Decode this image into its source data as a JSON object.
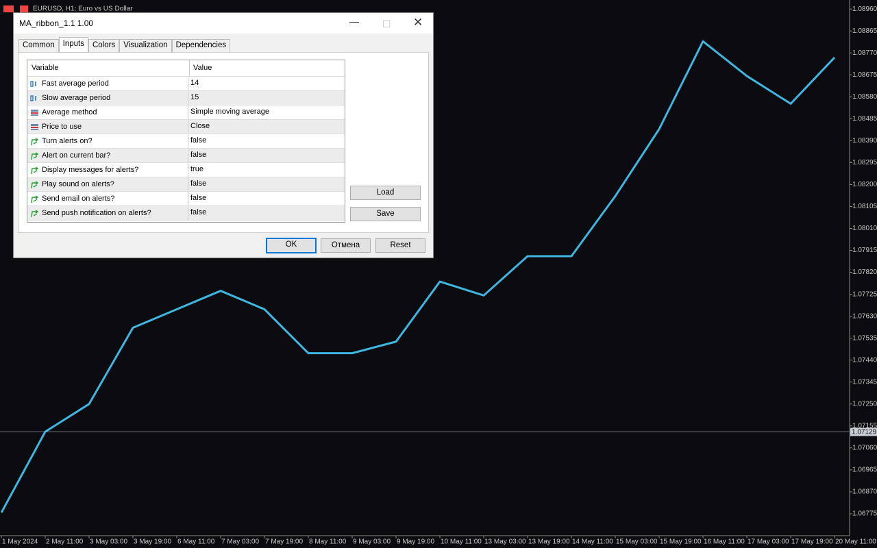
{
  "window": {
    "title": "EURUSD, H1:  Euro vs US Dollar"
  },
  "chart_data": {
    "type": "line",
    "color": "#3fb6e0",
    "categories": [
      "1 May 2024",
      "2 May 11:00",
      "3 May 03:00",
      "3 May 19:00",
      "6 May 11:00",
      "7 May 03:00",
      "7 May 19:00",
      "8 May 11:00",
      "9 May 03:00",
      "9 May 19:00",
      "10 May 11:00",
      "13 May 03:00",
      "13 May 19:00",
      "14 May 11:00",
      "15 May 03:00",
      "15 May 19:00",
      "16 May 11:00",
      "17 May 03:00",
      "17 May 19:00",
      "20 May 11:00"
    ],
    "values": [
      1.0678,
      1.0713,
      1.0725,
      1.0758,
      1.0766,
      1.0774,
      1.0766,
      1.0747,
      1.0747,
      1.0752,
      1.0778,
      1.0772,
      1.0789,
      1.0789,
      1.0815,
      1.0844,
      1.0882,
      1.0867,
      1.0855,
      1.0875
    ],
    "ylim": [
      1.06686,
      1.08999
    ],
    "yticks": [
      {
        "value": 1.0896,
        "label": "1.08960"
      },
      {
        "value": 1.08865,
        "label": "1.08865"
      },
      {
        "value": 1.0877,
        "label": "1.08770"
      },
      {
        "value": 1.08675,
        "label": "1.08675"
      },
      {
        "value": 1.0858,
        "label": "1.08580"
      },
      {
        "value": 1.08485,
        "label": "1.08485"
      },
      {
        "value": 1.0839,
        "label": "1.08390"
      },
      {
        "value": 1.08295,
        "label": "1.08295"
      },
      {
        "value": 1.082,
        "label": "1.08200"
      },
      {
        "value": 1.08105,
        "label": "1.08105"
      },
      {
        "value": 1.0801,
        "label": "1.08010"
      },
      {
        "value": 1.07915,
        "label": "1.07915"
      },
      {
        "value": 1.0782,
        "label": "1.07820"
      },
      {
        "value": 1.07725,
        "label": "1.07725"
      },
      {
        "value": 1.0763,
        "label": "1.07630"
      },
      {
        "value": 1.07535,
        "label": "1.07535"
      },
      {
        "value": 1.0744,
        "label": "1.07440"
      },
      {
        "value": 1.07345,
        "label": "1.07345"
      },
      {
        "value": 1.0725,
        "label": "1.07250"
      },
      {
        "value": 1.07155,
        "label": "1.07155"
      },
      {
        "value": 1.0706,
        "label": "1.07060"
      },
      {
        "value": 1.06965,
        "label": "1.06965"
      },
      {
        "value": 1.0687,
        "label": "1.06870"
      },
      {
        "value": 1.06775,
        "label": "1.06775"
      }
    ],
    "current_price": 1.07129
  },
  "dialog": {
    "title": "MA_ribbon_1.1 1.00",
    "tabs": [
      "Common",
      "Inputs",
      "Colors",
      "Visualization",
      "Dependencies"
    ],
    "table": {
      "header": [
        "Variable",
        "Value"
      ],
      "rows": [
        [
          "Fast average period",
          "14"
        ],
        [
          "Slow average period",
          "15"
        ],
        [
          "Average method",
          "Simple moving average"
        ],
        [
          "Price to use",
          "Close"
        ],
        [
          "Turn alerts on?",
          "false"
        ],
        [
          "Alert on current bar?",
          "false"
        ],
        [
          "Display messages for alerts?",
          "true"
        ],
        [
          "Play sound on alerts?",
          "false"
        ],
        [
          "Send email on alerts?",
          "false"
        ],
        [
          "Send push notification on alerts?",
          "false"
        ]
      ]
    },
    "side_buttons": [
      "Load",
      "Save"
    ],
    "buttons": [
      "OK",
      "Отмена",
      "Reset"
    ]
  }
}
